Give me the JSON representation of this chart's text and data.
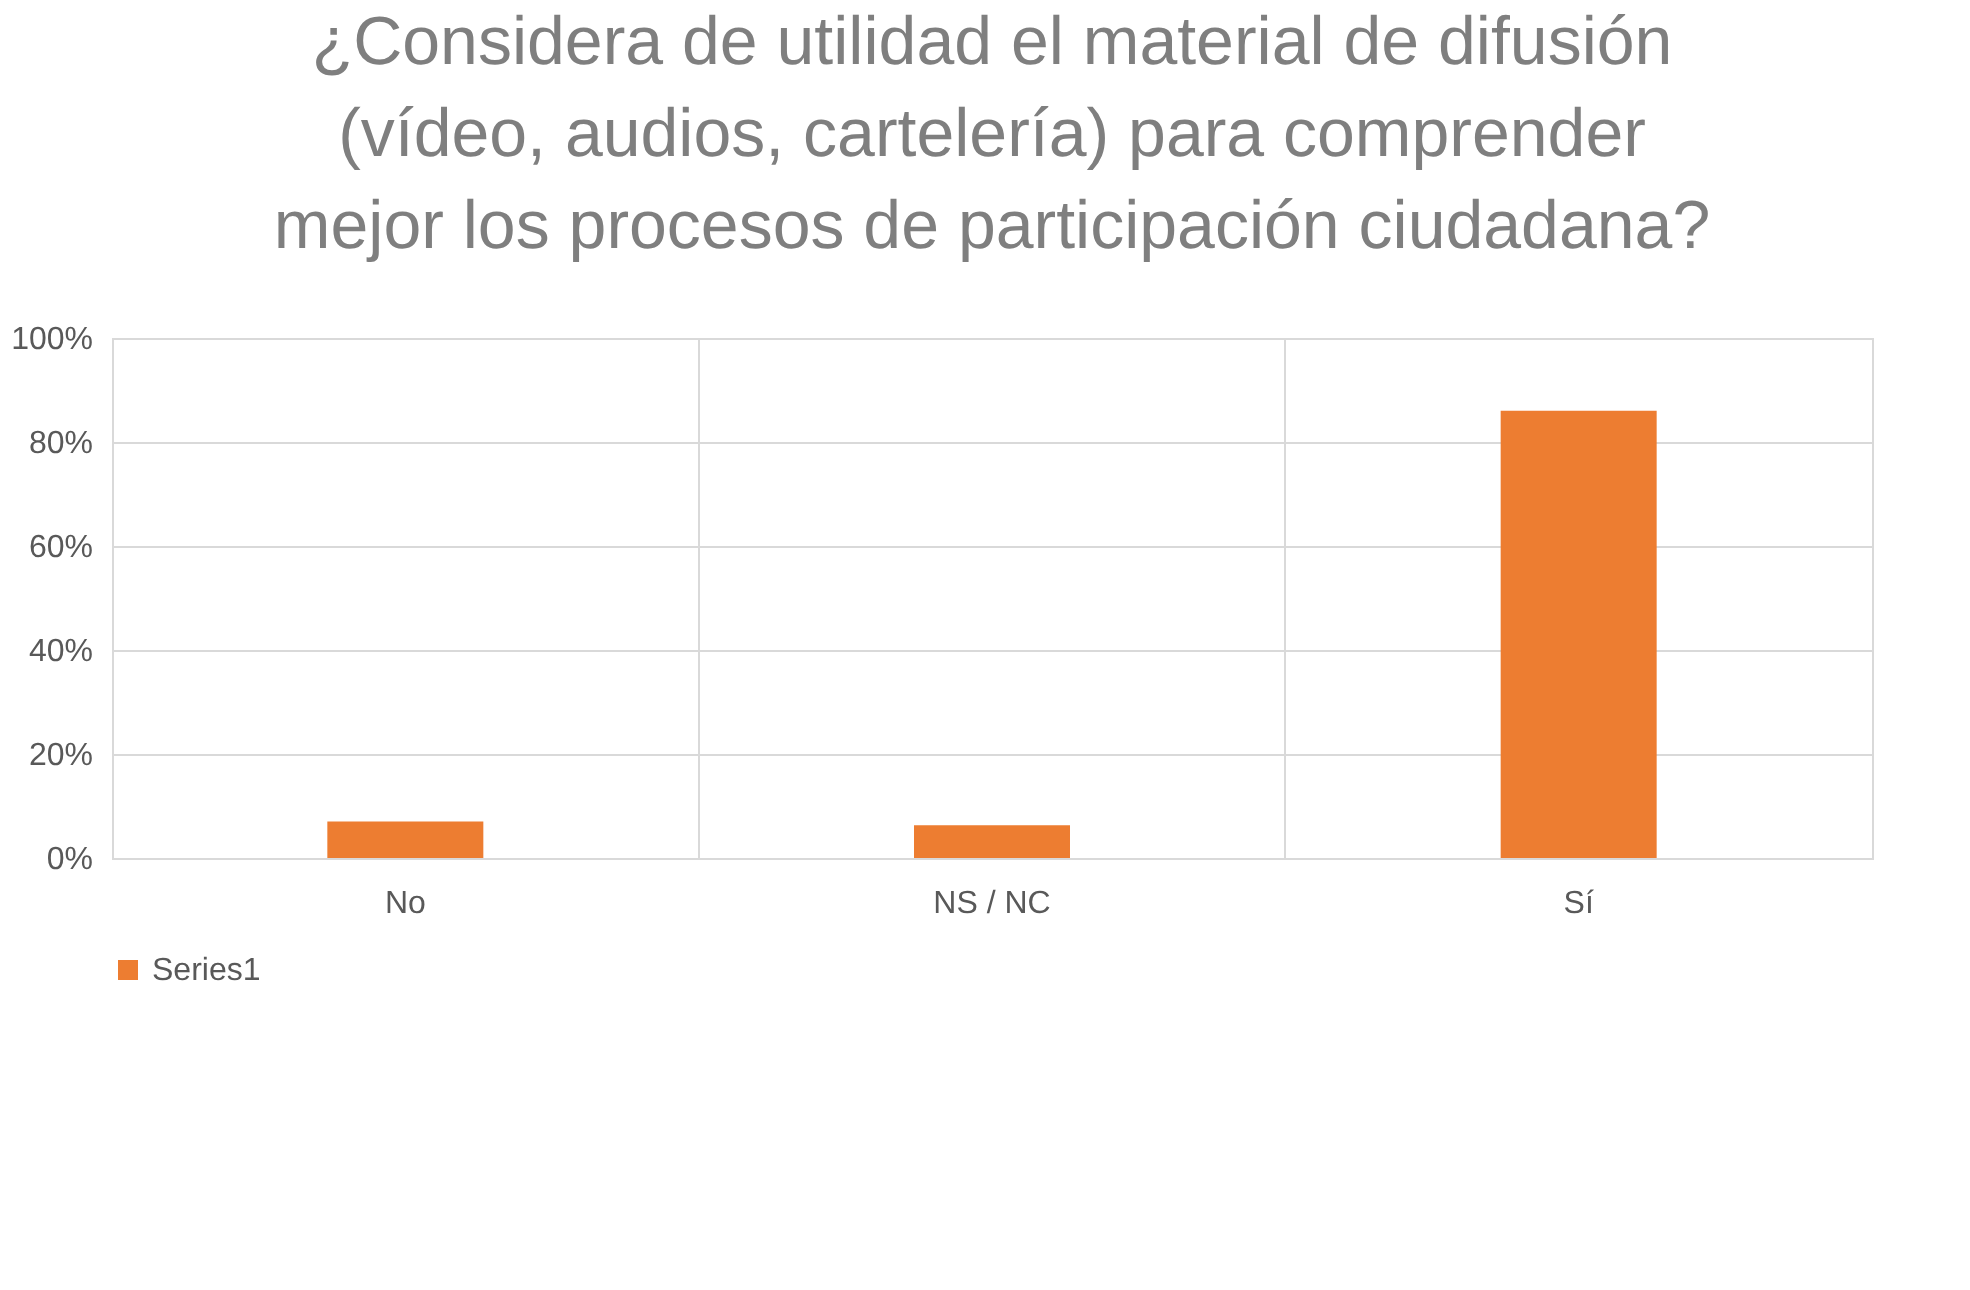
{
  "chart_data": {
    "type": "bar",
    "title": "¿Considera de utilidad el material de difusión (vídeo, audios, cartelería) para comprender mejor los procesos de participación ciudadana?",
    "categories": [
      "No",
      "NS / NC",
      "Sí"
    ],
    "series": [
      {
        "name": "Series1",
        "color": "#ed7d31",
        "values": [
          7,
          6.3,
          86
        ]
      }
    ],
    "ylim": [
      0,
      100
    ],
    "yticks": [
      {
        "value": 0,
        "label": "0%"
      },
      {
        "value": 20,
        "label": "20%"
      },
      {
        "value": 40,
        "label": "40%"
      },
      {
        "value": 60,
        "label": "60%"
      },
      {
        "value": 80,
        "label": "80%"
      },
      {
        "value": 100,
        "label": "100%"
      }
    ],
    "grid": true,
    "legend": "bottom"
  }
}
